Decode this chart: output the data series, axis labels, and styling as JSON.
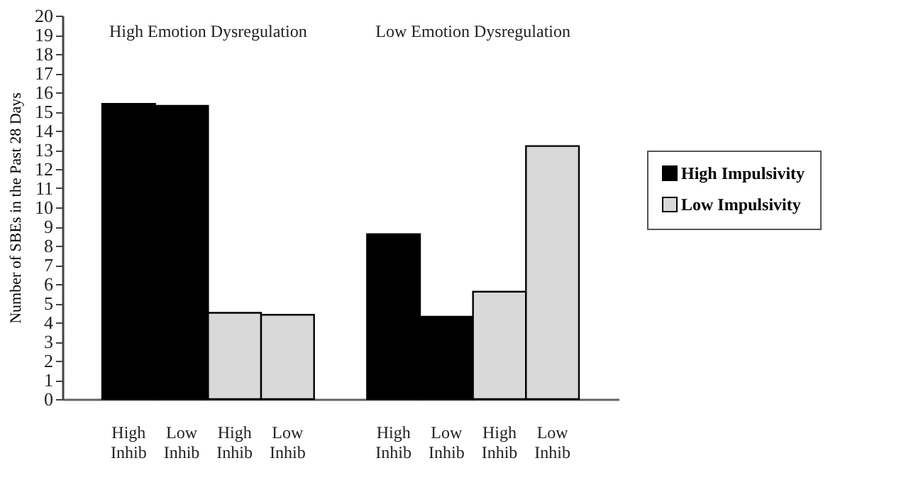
{
  "chart_data": {
    "type": "bar",
    "ylabel": "Number of SBEs in the Past 28 Days",
    "categories": [
      "High Inhib",
      "Low Inhib",
      "High Inhib",
      "Low Inhib",
      null,
      "High Inhib",
      "Low Inhib",
      "High Inhib",
      "Low Inhib"
    ],
    "series": [
      {
        "name": "High Impulsivity",
        "color": "#000000",
        "values": [
          15.4,
          15.3,
          null,
          null,
          null,
          8.6,
          4.3,
          null,
          null
        ]
      },
      {
        "name": "Low Impulsivity",
        "color": "#d9d9d9",
        "values": [
          null,
          null,
          4.5,
          4.4,
          null,
          null,
          null,
          5.6,
          13.2
        ]
      }
    ],
    "annotations": [
      "High Emotion Dysregulation",
      "Low Emotion Dysregulation"
    ],
    "ylim": [
      0,
      20
    ],
    "yticks": [
      0,
      1,
      2,
      3,
      4,
      5,
      6,
      7,
      8,
      9,
      10,
      11,
      12,
      13,
      14,
      15,
      16,
      17,
      18,
      19,
      20
    ],
    "grid": false,
    "legend": "right"
  }
}
